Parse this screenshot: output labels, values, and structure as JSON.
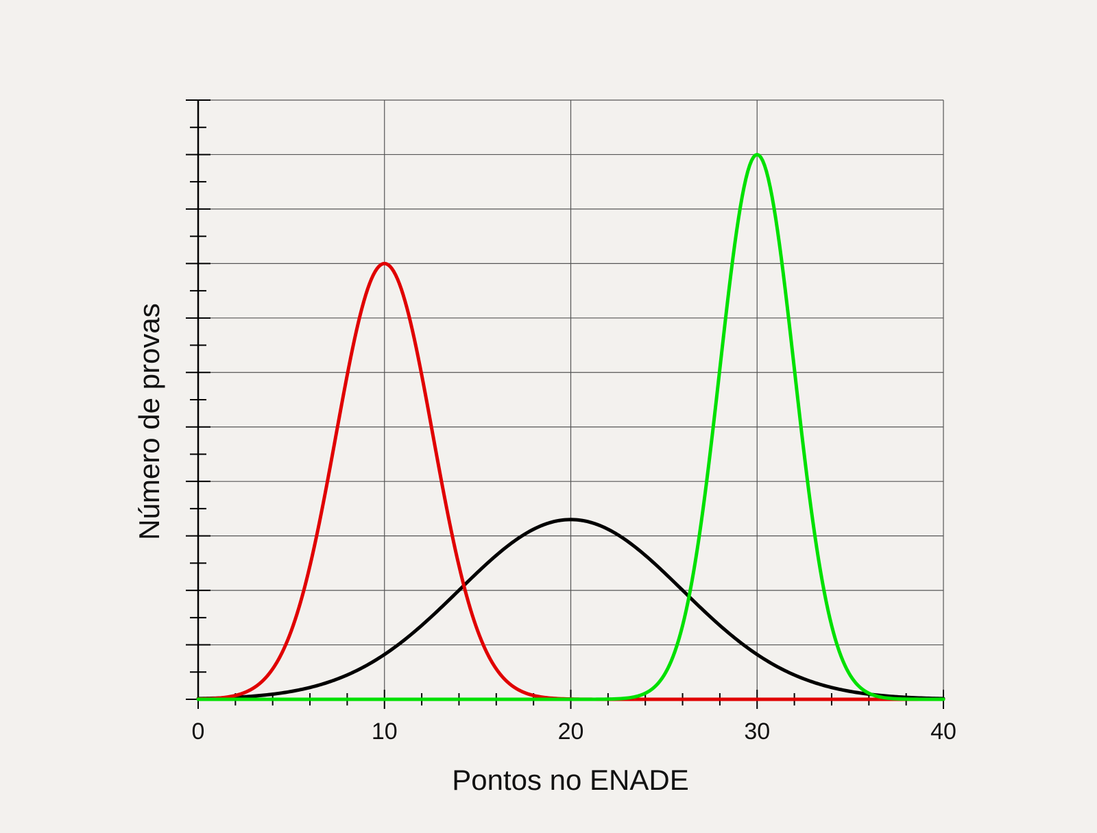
{
  "chart_data": {
    "type": "line",
    "title": "",
    "xlabel": "Pontos no ENADE",
    "ylabel": "Número de provas",
    "xlim": [
      0,
      40
    ],
    "ylim": [
      0,
      11
    ],
    "x_ticks_major": [
      0,
      10,
      20,
      30,
      40
    ],
    "x_ticks_minor_step": 2,
    "y_ticks_major_step": 1,
    "y_ticks_minor_step": 0.5,
    "y_tick_labels_shown": false,
    "grid": true,
    "legend": "none",
    "series": [
      {
        "color": "#000000",
        "mean": 20,
        "sd": 6,
        "peak": 3.3
      },
      {
        "color": "#e00000",
        "mean": 10,
        "sd": 2.6,
        "peak": 8.0
      },
      {
        "color": "#00e000",
        "mean": 30,
        "sd": 2.0,
        "peak": 10.0
      }
    ]
  }
}
